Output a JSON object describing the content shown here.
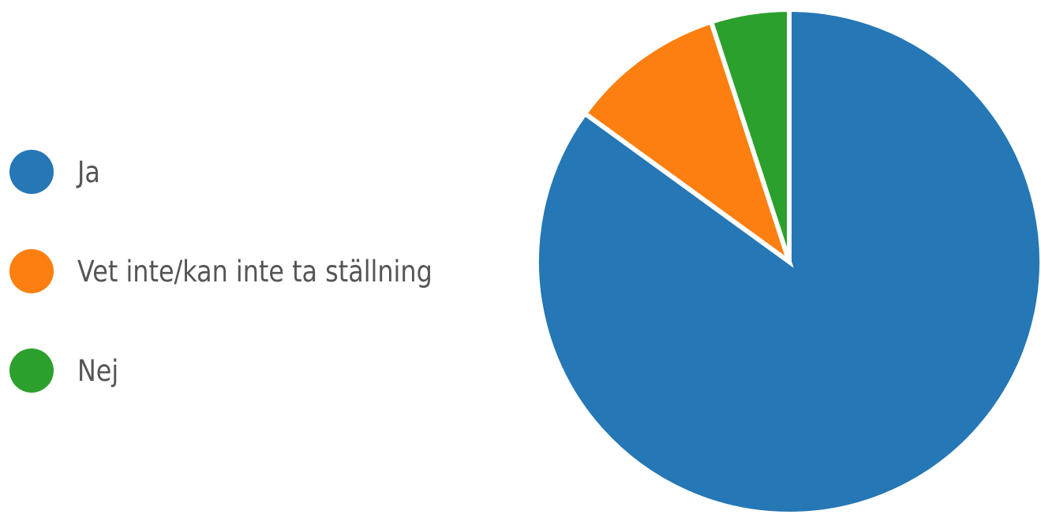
{
  "chart_data": {
    "type": "pie",
    "categories": [
      "Ja",
      "Vet inte/kan inte ta ställning",
      "Nej"
    ],
    "values": [
      85,
      10,
      5
    ],
    "colors": [
      "#2577b5",
      "#fd7f10",
      "#2ca02c"
    ],
    "legend_position": "left",
    "start_angle": "12 o'clock",
    "direction": "clockwise"
  }
}
